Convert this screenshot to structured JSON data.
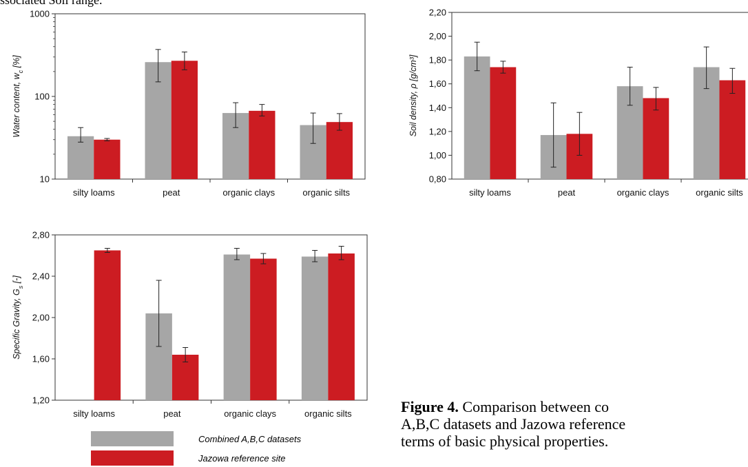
{
  "top_text": "ssociated Soil range.",
  "colors": {
    "combined": "#a6a6a6",
    "jazowa": "#cc1c22"
  },
  "legend": [
    {
      "label": "Combined A,B,C datasets",
      "color": "#a6a6a6"
    },
    {
      "label": "Jazowa reference site",
      "color": "#cc1c22"
    }
  ],
  "caption": {
    "label": "Figure 4.",
    "lines": [
      "Comparison between co",
      "A,B,C datasets and Jazowa reference",
      "terms of basic physical properties."
    ]
  },
  "chart_data": [
    {
      "type": "bar",
      "scale": "log",
      "ylabel": "Water content, w_c [%]",
      "ylim": [
        10,
        1000
      ],
      "yticks": [
        "10",
        "100",
        "1000"
      ],
      "categories": [
        "silty loams",
        "peat",
        "organic clays",
        "organic silts"
      ],
      "series": [
        {
          "name": "Combined A,B,C datasets",
          "values": [
            33,
            260,
            63,
            45
          ],
          "err_low": [
            28,
            150,
            42,
            27
          ],
          "err_high": [
            42,
            370,
            84,
            63
          ]
        },
        {
          "name": "Jazowa reference site",
          "values": [
            30,
            270,
            67,
            49
          ],
          "err_low": [
            29,
            210,
            58,
            39
          ],
          "err_high": [
            31,
            345,
            80,
            62
          ]
        }
      ]
    },
    {
      "type": "bar",
      "scale": "linear",
      "ylabel": "Soil density, ρ [g/cm³]",
      "ylim": [
        0.8,
        2.2
      ],
      "yticks": [
        "0,80",
        "1,00",
        "1,20",
        "1,40",
        "1,60",
        "1,80",
        "2,00",
        "2,20"
      ],
      "categories": [
        "silty loams",
        "peat",
        "organic clays",
        "organic silts"
      ],
      "series": [
        {
          "name": "Combined A,B,C datasets",
          "values": [
            1.83,
            1.17,
            1.58,
            1.74
          ],
          "err_low": [
            1.71,
            0.9,
            1.42,
            1.56
          ],
          "err_high": [
            1.95,
            1.44,
            1.74,
            1.91
          ]
        },
        {
          "name": "Jazowa reference site",
          "values": [
            1.74,
            1.18,
            1.48,
            1.63
          ],
          "err_low": [
            1.69,
            1.0,
            1.38,
            1.52
          ],
          "err_high": [
            1.79,
            1.36,
            1.57,
            1.73
          ]
        }
      ]
    },
    {
      "type": "bar",
      "scale": "linear",
      "ylabel": "Specific Gravity, G_s [-]",
      "ylim": [
        1.2,
        2.8
      ],
      "yticks": [
        "1,20",
        "1,60",
        "2,00",
        "2,40",
        "2,80"
      ],
      "categories": [
        "silty loams",
        "peat",
        "organic clays",
        "organic silts"
      ],
      "series": [
        {
          "name": "Combined A,B,C datasets",
          "values": [
            null,
            2.04,
            2.61,
            2.59
          ],
          "err_low": [
            null,
            1.72,
            2.56,
            2.54
          ],
          "err_high": [
            null,
            2.36,
            2.67,
            2.65
          ]
        },
        {
          "name": "Jazowa reference site",
          "values": [
            2.65,
            1.64,
            2.57,
            2.62
          ],
          "err_low": [
            2.63,
            1.57,
            2.52,
            2.56
          ],
          "err_high": [
            2.67,
            1.71,
            2.62,
            2.69
          ]
        }
      ]
    }
  ]
}
